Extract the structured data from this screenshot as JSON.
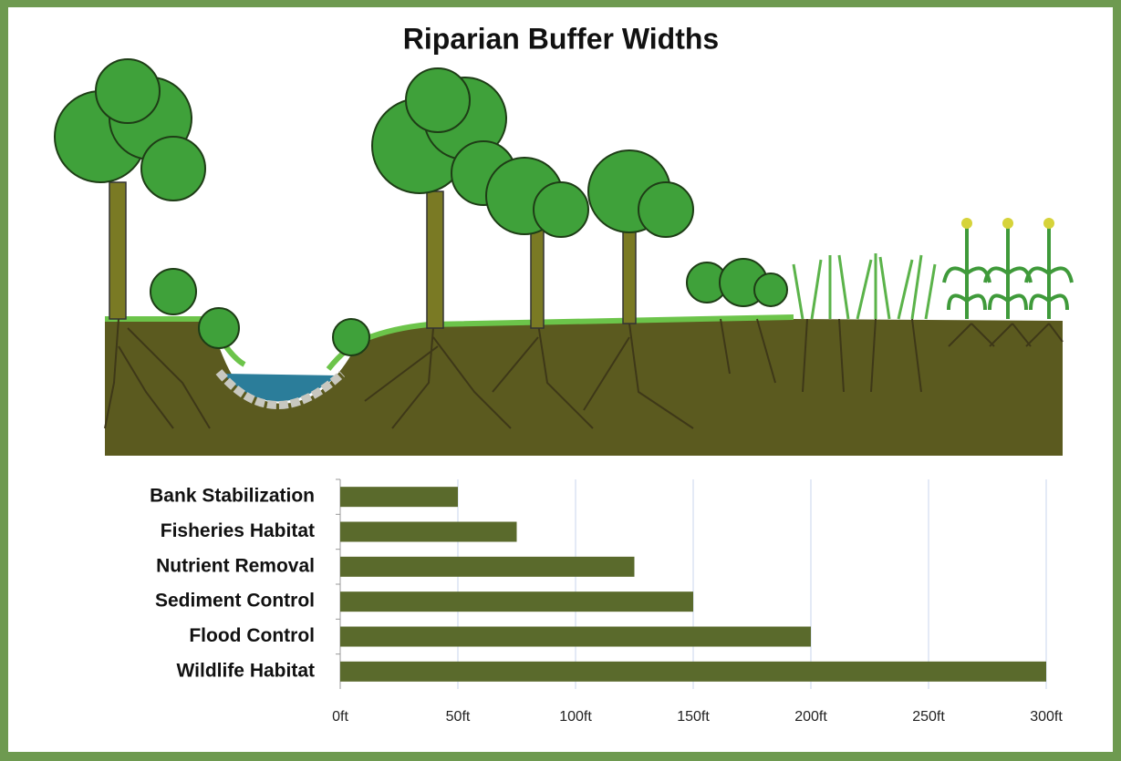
{
  "chart_data": {
    "type": "bar",
    "orientation": "horizontal",
    "title": "Riparian Buffer Widths",
    "categories": [
      "Bank Stabilization",
      "Fisheries Habitat",
      "Nutrient Removal",
      "Sediment Control",
      "Flood Control",
      "Wildlife Habitat"
    ],
    "values": [
      50,
      75,
      125,
      150,
      200,
      300
    ],
    "color": "#5a6a2c",
    "xlim": [
      0,
      300
    ],
    "xticks": [
      {
        "value": 0,
        "label": "0ft"
      },
      {
        "value": 50,
        "label": "50ft"
      },
      {
        "value": 100,
        "label": "100ft"
      },
      {
        "value": 150,
        "label": "150ft"
      },
      {
        "value": 200,
        "label": "200ft"
      },
      {
        "value": 250,
        "label": "250ft"
      },
      {
        "value": 300,
        "label": "300ft"
      }
    ],
    "grid": true
  }
}
